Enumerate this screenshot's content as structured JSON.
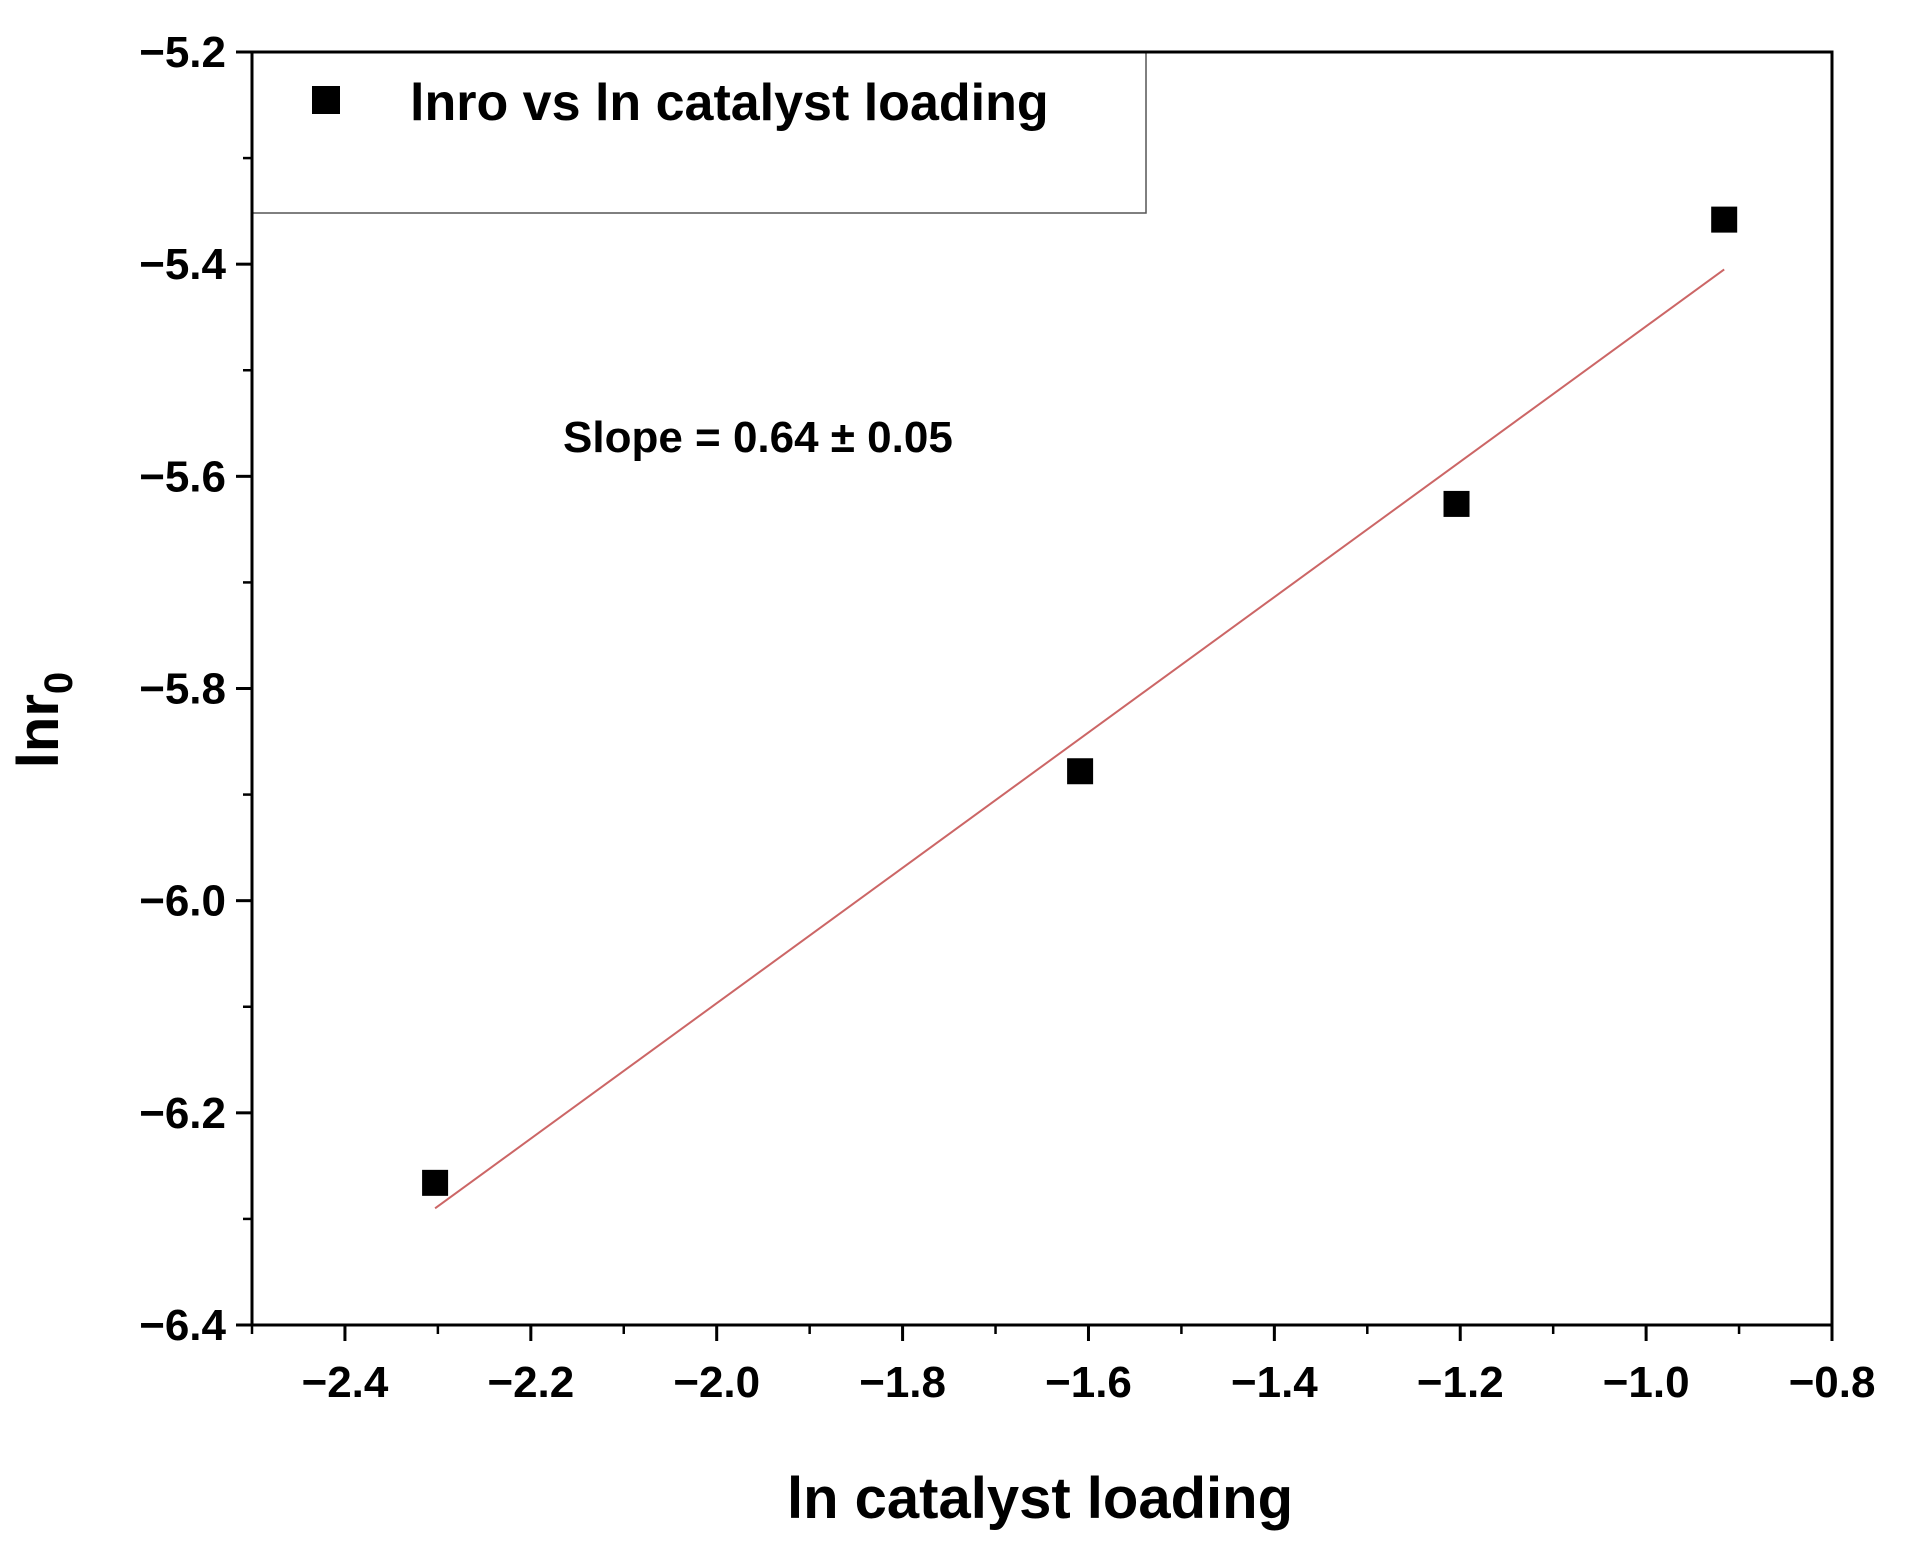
{
  "chart_data": {
    "type": "scatter",
    "xlabel": "ln catalyst loading",
    "ylabel_main": "lnr",
    "ylabel_sub": "0",
    "xlim": [
      -2.5,
      -0.8
    ],
    "ylim": [
      -6.4,
      -5.2
    ],
    "x_ticks": [
      -2.4,
      -2.2,
      -2.0,
      -1.8,
      -1.6,
      -1.4,
      -1.2,
      -1.0,
      -0.8
    ],
    "x_tick_labels": [
      "−2.4",
      "−2.2",
      "−2.0",
      "−1.8",
      "−1.6",
      "−1.4",
      "−1.2",
      "−1.0",
      "−0.8"
    ],
    "y_ticks": [
      -6.4,
      -6.2,
      -6.0,
      -5.8,
      -5.6,
      -5.4,
      -5.2
    ],
    "y_tick_labels": [
      "−6.4",
      "−6.2",
      "−6.0",
      "−5.8",
      "−5.6",
      "−5.4",
      "−5.2"
    ],
    "series": [
      {
        "name": "lnro vs ln catalyst loading",
        "marker": "square",
        "color": "#000000",
        "x": [
          -2.303,
          -1.609,
          -1.204,
          -0.916
        ],
        "y": [
          -6.266,
          -5.878,
          -5.626,
          -5.358
        ]
      }
    ],
    "fit_line": {
      "color": "#cc6666",
      "x": [
        -2.303,
        -0.916
      ],
      "y": [
        -6.29,
        -5.405
      ]
    },
    "annotation": "Slope = 0.64 ± 0.05",
    "legend_position": "top-left",
    "grid": false
  }
}
